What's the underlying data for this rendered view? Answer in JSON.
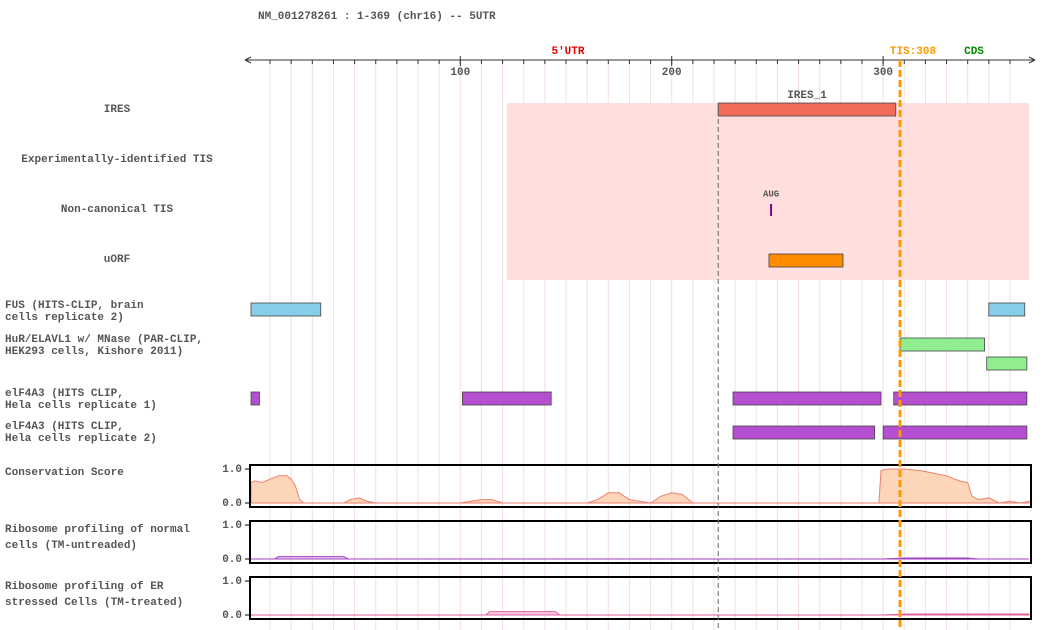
{
  "header": "NM_001278261 : 1-369 (chr16) -- 5UTR",
  "ruler": {
    "xlim": [
      1,
      369
    ],
    "ticks": [
      100,
      200,
      300
    ],
    "minor_ticks": [
      10,
      20,
      30,
      40,
      50,
      60,
      70,
      80,
      90,
      100,
      110,
      120,
      130,
      140,
      150,
      160,
      170,
      180,
      190,
      200,
      210,
      220,
      230,
      240,
      250,
      260,
      270,
      280,
      290,
      300,
      310,
      320,
      330,
      340,
      350,
      360
    ]
  },
  "regions": [
    {
      "label": "5'UTR",
      "color": "#e00000"
    },
    {
      "label": "TIS:308",
      "color": "#ff9900"
    },
    {
      "label": "CDS",
      "color": "#008800"
    }
  ],
  "tis_position": 308,
  "tracks": [
    {
      "label": [
        "IRES"
      ],
      "region": [
        122,
        369
      ],
      "features": [
        {
          "label": "IRES_1",
          "start": 222,
          "end": 306,
          "color": "#f26b5b"
        }
      ]
    },
    {
      "label": [
        "Experimentally-identified TIS"
      ],
      "features": []
    },
    {
      "label": [
        "Non-canonical TIS"
      ],
      "points": [
        {
          "label": "AUG",
          "position": 247,
          "color": "#800080"
        }
      ]
    },
    {
      "label": [
        "uORF"
      ],
      "features": [
        {
          "start": 246,
          "end": 281,
          "color": "#ff8c00"
        }
      ]
    },
    {
      "label": [
        "FUS (HITS-CLIP, brain",
        "cells replicate 2)"
      ],
      "features": [
        {
          "start": 1,
          "end": 34,
          "color": "#87ceeb"
        },
        {
          "start": 350,
          "end": 367,
          "color": "#87ceeb"
        }
      ]
    },
    {
      "label": [
        "HuR/ELAVL1 w/ MNase (PAR-CLIP,",
        "HEK293 cells, Kishore 2011)"
      ],
      "features": [
        {
          "start": 308,
          "end": 348,
          "color": "#90ee90"
        },
        {
          "start": 349,
          "end": 368,
          "color": "#90ee90"
        }
      ]
    },
    {
      "label": [
        "elF4A3 (HITS CLIP,",
        "Hela cells replicate 1)"
      ],
      "features": [
        {
          "start": 1,
          "end": 5,
          "color": "#b44fd1"
        },
        {
          "start": 101,
          "end": 143,
          "color": "#b44fd1"
        },
        {
          "start": 229,
          "end": 299,
          "color": "#b44fd1"
        },
        {
          "start": 305,
          "end": 368,
          "color": "#b44fd1"
        }
      ]
    },
    {
      "label": [
        "elF4A3 (HITS CLIP,",
        "Hela cells replicate 2)"
      ],
      "features": [
        {
          "start": 229,
          "end": 296,
          "color": "#b44fd1"
        },
        {
          "start": 300,
          "end": 368,
          "color": "#b44fd1"
        }
      ]
    },
    {
      "label": [
        "Conservation Score"
      ],
      "signal": {
        "ylim": [
          0,
          1
        ],
        "yticks": [
          {
            "value": 1,
            "label": "1.0"
          },
          {
            "value": 0,
            "label": "0.0"
          }
        ],
        "color": "#f08070",
        "fill": "#fdd5b8",
        "x": [
          1,
          3,
          6,
          10,
          14,
          18,
          20,
          22,
          24,
          26,
          30,
          45,
          48,
          52,
          56,
          60,
          100,
          105,
          110,
          115,
          120,
          160,
          165,
          170,
          175,
          180,
          190,
          195,
          200,
          205,
          210,
          298,
          299,
          302,
          310,
          318,
          322,
          330,
          336,
          340,
          342,
          345,
          350,
          355,
          360,
          365,
          369
        ],
        "values": [
          0.6,
          0.65,
          0.6,
          0.7,
          0.8,
          0.8,
          0.7,
          0.5,
          0.1,
          0,
          0,
          0,
          0.1,
          0.15,
          0.05,
          0,
          0,
          0.05,
          0.1,
          0.1,
          0,
          0,
          0.1,
          0.3,
          0.3,
          0.1,
          0,
          0.2,
          0.3,
          0.25,
          0,
          0,
          0.95,
          1,
          1,
          0.95,
          0.9,
          0.8,
          0.65,
          0.6,
          0.2,
          0.1,
          0.15,
          0,
          0.05,
          0,
          0.05
        ]
      }
    },
    {
      "label": [
        "Ribosome profiling of normal",
        "cells (TM-untreaded)"
      ],
      "signal": {
        "ylim": [
          0,
          1
        ],
        "yticks": [
          {
            "value": 1,
            "label": "1.0"
          },
          {
            "value": 0,
            "label": "0.0"
          }
        ],
        "color": "#a040c0",
        "fill": "#e8c8f0",
        "x": [
          1,
          12,
          14,
          45,
          47,
          300,
          310,
          340,
          345,
          369
        ],
        "values": [
          0,
          0,
          0.07,
          0.07,
          0,
          0,
          0.03,
          0.03,
          0,
          0
        ]
      }
    },
    {
      "label": [
        "Ribosome profiling of ER",
        "stressed Cells (TM-treated)"
      ],
      "signal": {
        "ylim": [
          0,
          1
        ],
        "yticks": [
          {
            "value": 1,
            "label": "1.0"
          },
          {
            "value": 0,
            "label": "0.0"
          }
        ],
        "color": "#e060a0",
        "fill": "#f8c8e0",
        "x": [
          1,
          112,
          114,
          145,
          147,
          300,
          310,
          369
        ],
        "values": [
          0,
          0,
          0.1,
          0.1,
          0,
          0,
          0.03,
          0.03
        ]
      }
    }
  ]
}
